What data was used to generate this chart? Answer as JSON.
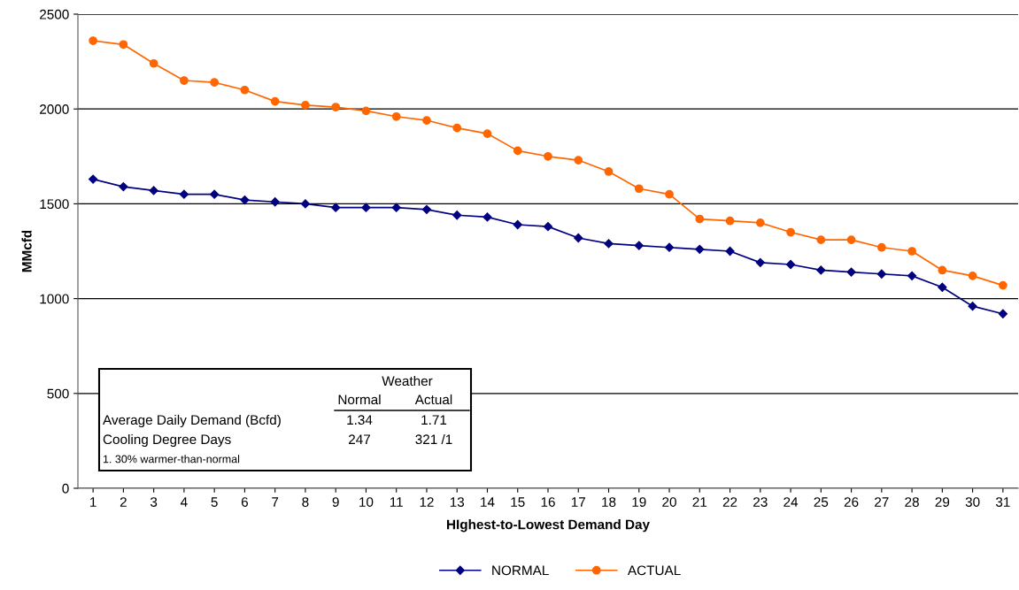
{
  "chart_data": {
    "type": "line",
    "xlabel": "HIghest-to-Lowest Demand Day",
    "ylabel": "MMcfd",
    "categories": [
      "1",
      "2",
      "3",
      "4",
      "5",
      "6",
      "7",
      "8",
      "9",
      "10",
      "11",
      "12",
      "13",
      "14",
      "15",
      "16",
      "17",
      "18",
      "19",
      "20",
      "21",
      "22",
      "23",
      "24",
      "25",
      "26",
      "27",
      "28",
      "29",
      "30",
      "31"
    ],
    "series": [
      {
        "name": "NORMAL",
        "color": "#000080",
        "marker": "diamond",
        "values": [
          1630,
          1590,
          1570,
          1550,
          1550,
          1520,
          1510,
          1500,
          1480,
          1480,
          1480,
          1470,
          1440,
          1430,
          1390,
          1380,
          1320,
          1290,
          1280,
          1270,
          1260,
          1250,
          1190,
          1180,
          1150,
          1140,
          1130,
          1120,
          1060,
          960,
          920
        ]
      },
      {
        "name": "ACTUAL",
        "color": "#ff6600",
        "marker": "circle",
        "values": [
          2360,
          2340,
          2240,
          2150,
          2140,
          2100,
          2040,
          2020,
          2010,
          1990,
          1960,
          1940,
          1900,
          1870,
          1780,
          1750,
          1730,
          1670,
          1580,
          1550,
          1420,
          1410,
          1400,
          1350,
          1310,
          1310,
          1270,
          1250,
          1150,
          1120,
          1070
        ]
      }
    ],
    "ylim": [
      0,
      2500
    ],
    "yticks": [
      0,
      500,
      1000,
      1500,
      2000,
      2500
    ],
    "grid": "y",
    "legend": "bottom",
    "line_style": "solid",
    "annotations": [
      "Weather",
      "Normal",
      "Actual",
      "Average Daily Demand (Bcfd)",
      "1.34",
      "1.71",
      "Cooling Degree Days",
      "247",
      "321 /1",
      "1. 30% warmer-than-normal"
    ]
  }
}
